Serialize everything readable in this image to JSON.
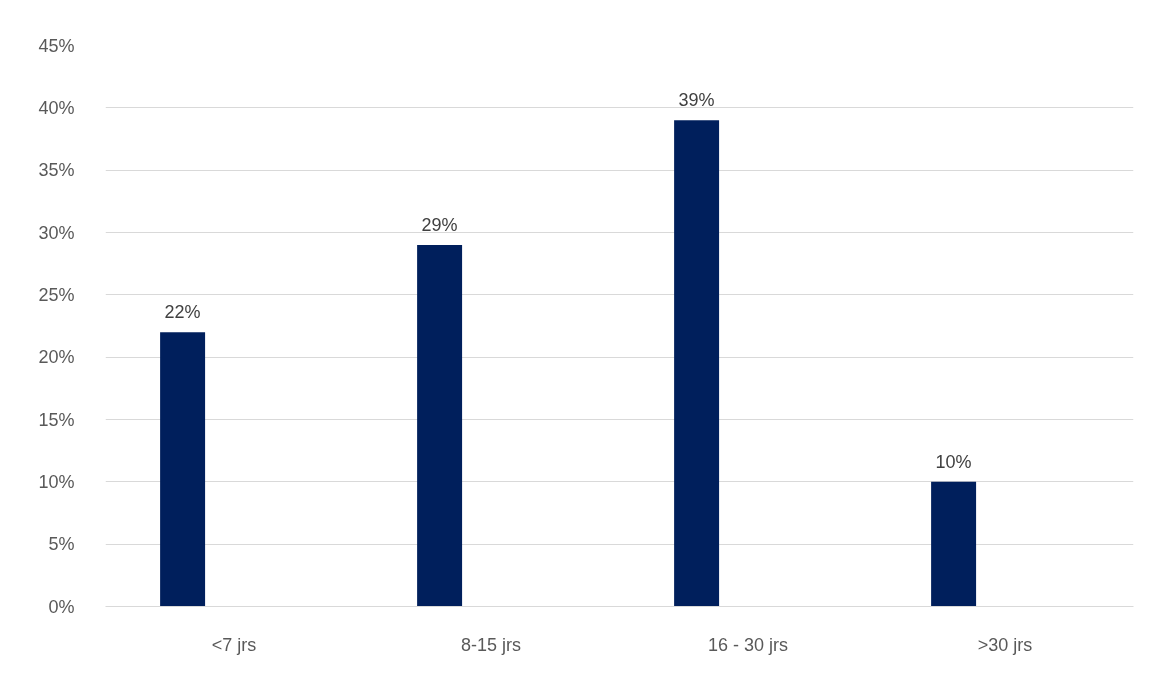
{
  "chart_data": {
    "type": "bar",
    "categories": [
      "<7 jrs",
      "8-15 jrs",
      "16 - 30 jrs",
      ">30 jrs"
    ],
    "values": [
      22,
      29,
      39,
      10
    ],
    "color": "#001f5c",
    "value_labels": [
      "22%",
      "29%",
      "39%",
      "10%"
    ],
    "ylim": [
      0,
      45
    ],
    "yticks": [
      {
        "value": 0,
        "label": "0%"
      },
      {
        "value": 5,
        "label": "5%"
      },
      {
        "value": 10,
        "label": "10%"
      },
      {
        "value": 15,
        "label": "15%"
      },
      {
        "value": 20,
        "label": "20%"
      },
      {
        "value": 25,
        "label": "25%"
      },
      {
        "value": 30,
        "label": "30%"
      },
      {
        "value": 35,
        "label": "35%"
      },
      {
        "value": 40,
        "label": "40%"
      },
      {
        "value": 45,
        "label": "45%"
      }
    ],
    "grid": "y"
  }
}
